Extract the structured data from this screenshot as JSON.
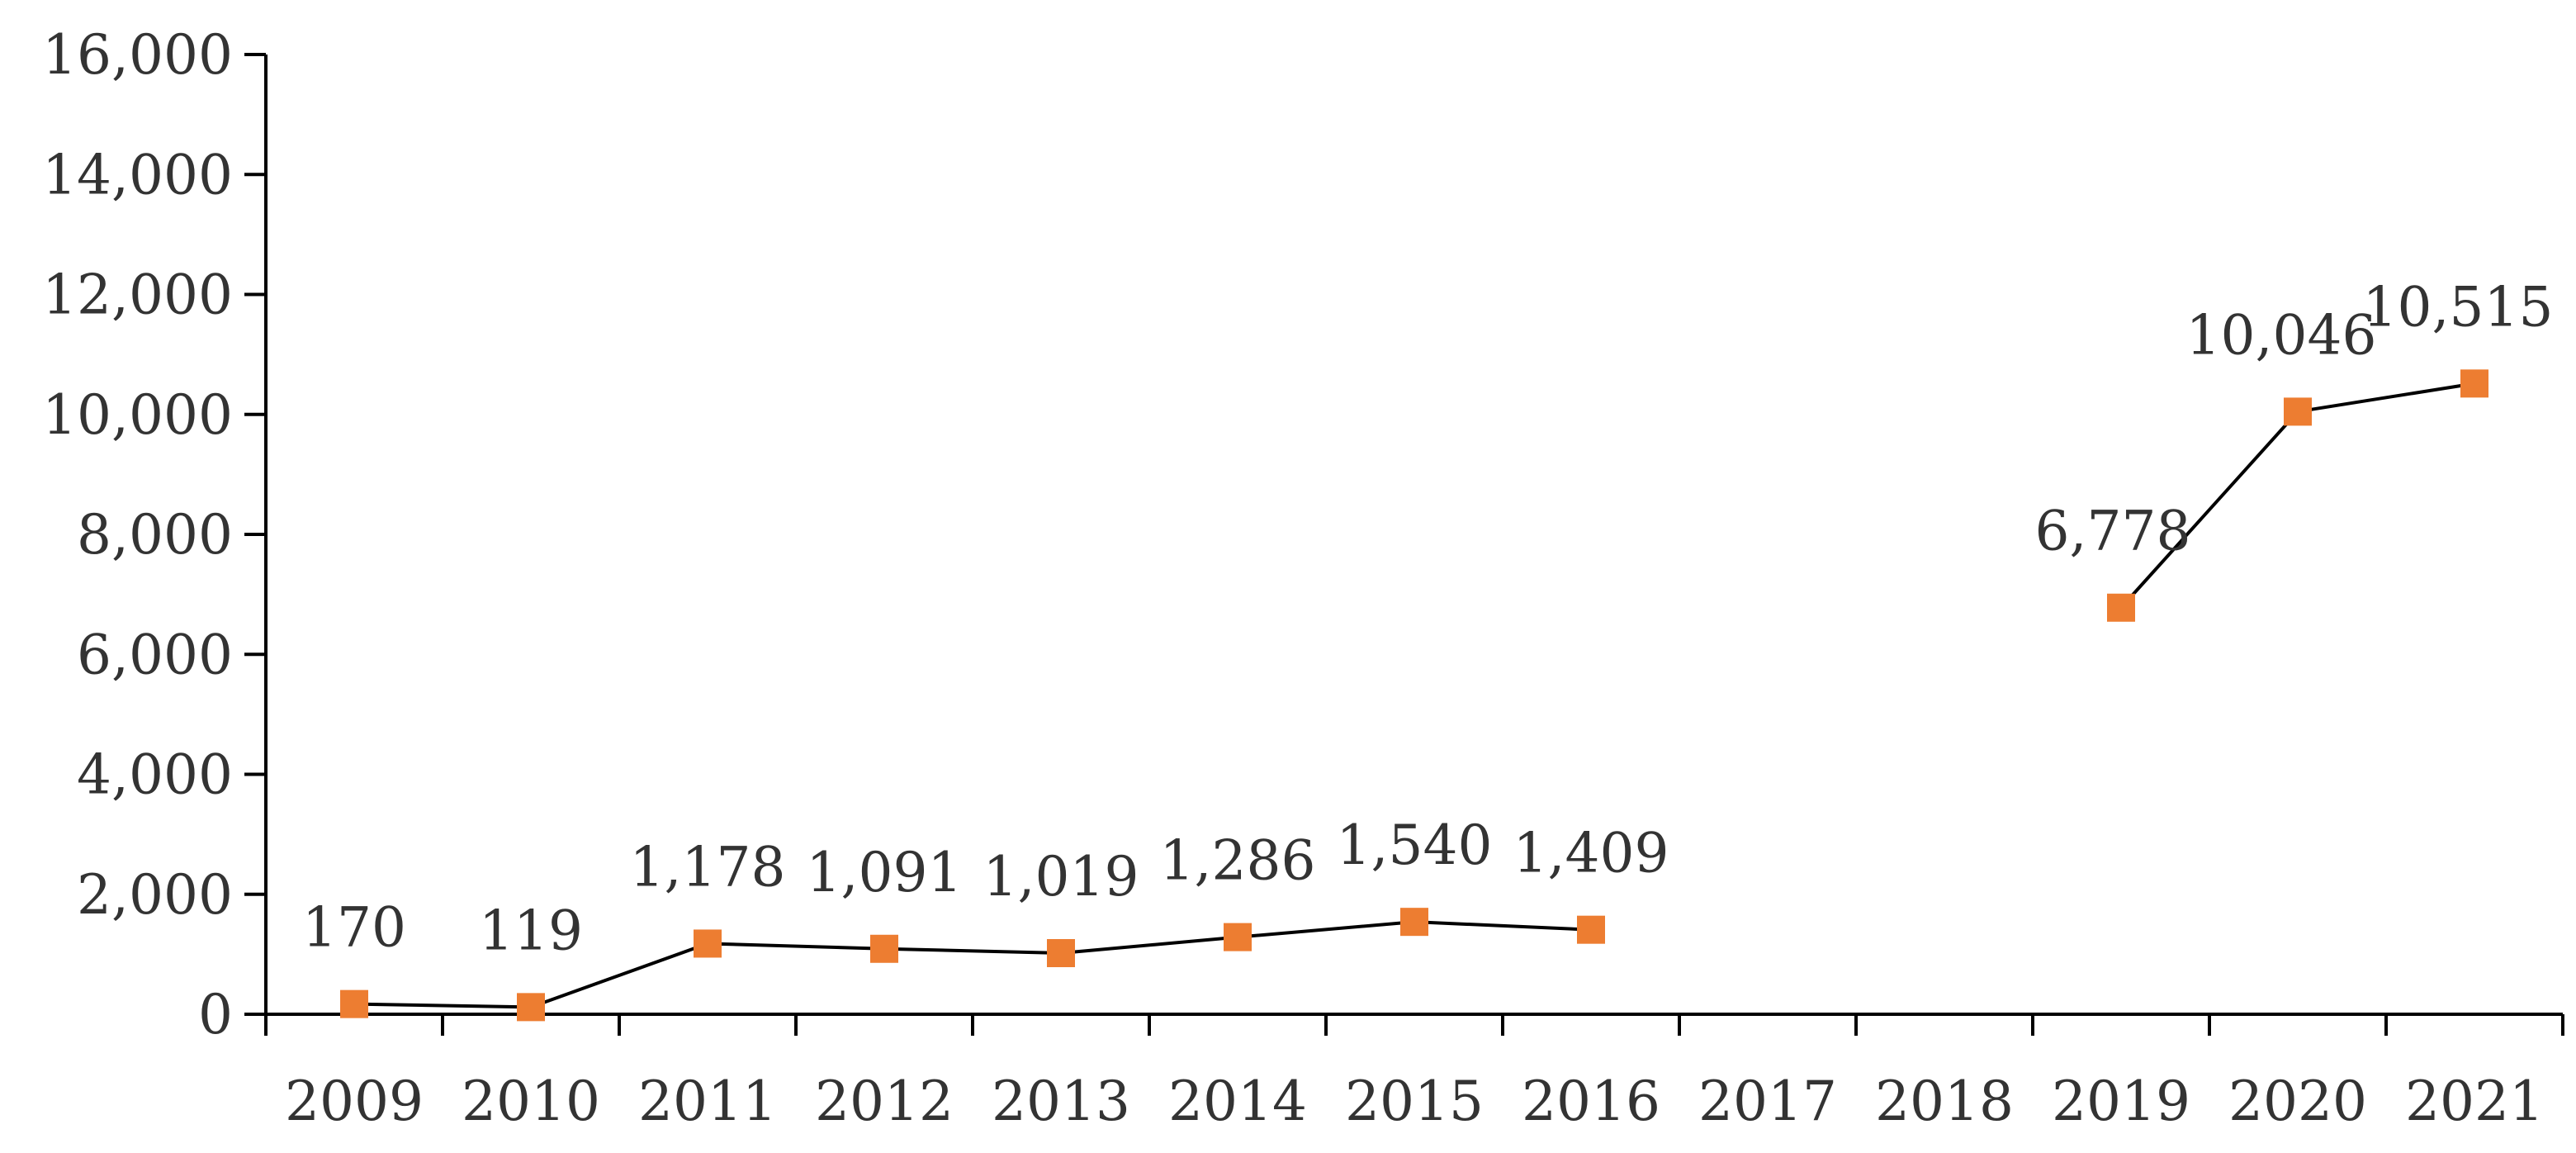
{
  "chart_data": {
    "type": "line",
    "title": "",
    "xlabel": "",
    "ylabel": "",
    "categories": [
      "2009",
      "2010",
      "2011",
      "2012",
      "2013",
      "2014",
      "2015",
      "2016",
      "2017",
      "2018",
      "2019",
      "2020",
      "2021"
    ],
    "series": [
      {
        "values": [
          170,
          119,
          1178,
          1091,
          1019,
          1286,
          1540,
          1409,
          null,
          null,
          6778,
          10046,
          10515
        ],
        "labels": [
          "170",
          "119",
          "1,178",
          "1,091",
          "1,019",
          "1,286",
          "1,540",
          "1,409",
          "",
          "",
          "6,778",
          "10,046",
          "10,515"
        ],
        "line_color": "#000000",
        "marker": "square",
        "marker_color": "#ED7D31"
      }
    ],
    "ylim": [
      0,
      16000
    ],
    "yticks": [
      0,
      2000,
      4000,
      6000,
      8000,
      10000,
      12000,
      14000,
      16000
    ],
    "ytick_labels": [
      "0",
      "2,000",
      "4,000",
      "6,000",
      "8,000",
      "10,000",
      "12,000",
      "14,000",
      "16,000"
    ],
    "grid": false,
    "legend": "none"
  }
}
